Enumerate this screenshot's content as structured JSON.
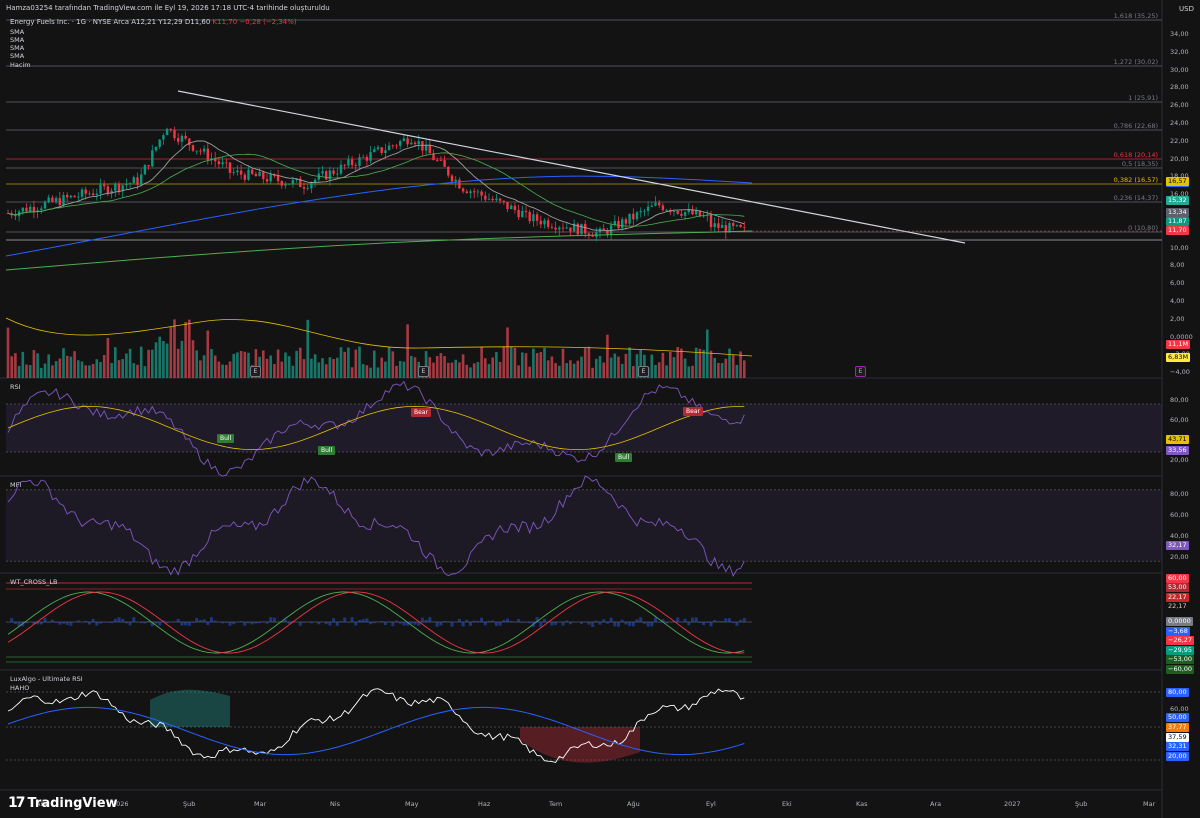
{
  "header": {
    "attribution": "Hamza03254 tarafından TradingView.com ile Eyl 19, 2026 17:18 UTC-4 tarihinde oluşturuldu"
  },
  "symbol": {
    "name": "Energy Fuels Inc. · 1G · NYSE Arca",
    "open": "A12,21",
    "high": "Y12,29",
    "low": "D11,60",
    "close": "K11,70",
    "change": "−0,28 (−2,34%)"
  },
  "overlays": [
    "SMA",
    "SMA",
    "SMA",
    "SMA",
    "Hacim"
  ],
  "currency": "USD",
  "price_axis": [
    "34,00",
    "32,00",
    "30,00",
    "28,00",
    "26,00",
    "24,00",
    "22,00",
    "20,00",
    "18,00",
    "16,00",
    "14,00",
    "12,00",
    "10,00",
    "8,00",
    "6,00",
    "4,00",
    "2,00",
    "0,0000",
    "−2,00",
    "−4,00"
  ],
  "fib_levels": [
    {
      "label": "1,618 (35,25)",
      "color": "#787b86"
    },
    {
      "label": "1,272 (30,02)",
      "color": "#787b86"
    },
    {
      "label": "1 (25,91)",
      "color": "#787b86"
    },
    {
      "label": "0,786 (22,68)",
      "color": "#787b86"
    },
    {
      "label": "0,618 (20,14)",
      "color": "#f23645"
    },
    {
      "label": "0,5 (18,35)",
      "color": "#787b86"
    },
    {
      "label": "0,382 (16,57)",
      "color": "#e5c100"
    },
    {
      "label": "0,236 (14,37)",
      "color": "#787b86"
    },
    {
      "label": "0 (10,80)",
      "color": "#787b86"
    }
  ],
  "price_badges": [
    {
      "text": "17,32",
      "bg": "#2962ff",
      "fg": "#ffffff"
    },
    {
      "text": "16,57",
      "bg": "#e5c100",
      "fg": "#000000"
    },
    {
      "text": "15,32",
      "bg": "#22ab94",
      "fg": "#ffffff"
    },
    {
      "text": "13,34",
      "bg": "#5d606b",
      "fg": "#ffffff"
    },
    {
      "text": "11,87",
      "bg": "#089981",
      "fg": "#ffffff"
    },
    {
      "text": "11,70",
      "bg": "#f23645",
      "fg": "#ffffff"
    }
  ],
  "volume_badges": [
    {
      "text": "11,1M",
      "bg": "#f23645",
      "fg": "#ffffff"
    },
    {
      "text": "6,83M",
      "bg": "#ffeb3b",
      "fg": "#000000"
    }
  ],
  "rsi": {
    "title": "RSI",
    "axis": [
      "80,00",
      "60,00",
      "40,00",
      "20,00"
    ],
    "badges": [
      {
        "text": "43,71",
        "bg": "#e5c100",
        "fg": "#000000"
      },
      {
        "text": "33,56",
        "bg": "#7e57c2",
        "fg": "#ffffff"
      }
    ],
    "signals": [
      {
        "text": "Bear",
        "bg": "#b22833"
      },
      {
        "text": "Bear",
        "bg": "#b22833"
      },
      {
        "text": "Bull",
        "bg": "#2e7d32"
      },
      {
        "text": "Bull",
        "bg": "#2e7d32"
      },
      {
        "text": "Bull",
        "bg": "#2e7d32"
      }
    ]
  },
  "mfi": {
    "title": "MFI",
    "axis": [
      "80,00",
      "60,00",
      "40,00",
      "20,00"
    ],
    "badges": [
      {
        "text": "32,17",
        "bg": "#7e57c2",
        "fg": "#ffffff"
      }
    ]
  },
  "wt": {
    "title": "WT_CROSS_LB",
    "badges": [
      {
        "text": "60,00",
        "bg": "#f23645",
        "fg": "#ffffff"
      },
      {
        "text": "53,00",
        "bg": "#b22833",
        "fg": "#ffffff"
      },
      {
        "text": "22,17",
        "bg": "#c62828",
        "fg": "#ffffff"
      },
      {
        "text": "22,17",
        "bg": "#131313",
        "fg": "#d1d4dc"
      },
      {
        "text": "0,0000",
        "bg": "#787b86",
        "fg": "#ffffff"
      },
      {
        "text": "−3,68",
        "bg": "#2962ff",
        "fg": "#ffffff"
      },
      {
        "text": "−26,27",
        "bg": "#f23645",
        "fg": "#ffffff"
      },
      {
        "text": "−29,95",
        "bg": "#089981",
        "fg": "#ffffff"
      },
      {
        "text": "−53,00",
        "bg": "#1b5e20",
        "fg": "#ffffff"
      },
      {
        "text": "−60,00",
        "bg": "#1b5e20",
        "fg": "#ffffff"
      }
    ]
  },
  "ursi": {
    "title": "LuxAlgo - Ultimate RSI",
    "subtitle": "HAHO",
    "axis": [
      "80,00",
      "60,00",
      "40,00",
      "20,00"
    ],
    "badges": [
      {
        "text": "80,00",
        "bg": "#2962ff",
        "fg": "#ffffff"
      },
      {
        "text": "50,00",
        "bg": "#2962ff",
        "fg": "#ffffff"
      },
      {
        "text": "37,77",
        "bg": "#f57c00",
        "fg": "#ffffff"
      },
      {
        "text": "37,59",
        "bg": "#ffffff",
        "fg": "#000000"
      },
      {
        "text": "32,31",
        "bg": "#2962ff",
        "fg": "#ffffff"
      },
      {
        "text": "20,00",
        "bg": "#2962ff",
        "fg": "#ffffff"
      }
    ]
  },
  "events": [
    "E",
    "E",
    "E",
    "E"
  ],
  "time_axis": [
    "Ara",
    "2026",
    "Şub",
    "Mar",
    "Nis",
    "May",
    "Haz",
    "Tem",
    "Ağu",
    "Eyl",
    "Eki",
    "Kas",
    "Ara",
    "2027",
    "Şub",
    "Mar"
  ],
  "brand": "TradingView"
}
